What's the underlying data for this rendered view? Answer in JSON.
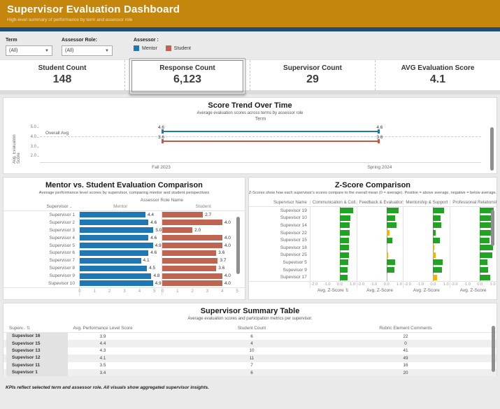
{
  "colors": {
    "header_gold": "#C5860D",
    "navy": "#1F4E79",
    "mentor_blue": "#1F77B4",
    "student_brick": "#BF6450",
    "trend_red": "#C75742",
    "positive_green": "#23A323",
    "negative_amber": "#F2B600"
  },
  "header": {
    "title": "Supervisor Evaluation Dashboard",
    "subtitle": "High-level summary of performance by term and assessor role"
  },
  "filters": {
    "term_label": "Term",
    "term_value": "(All)",
    "role_label": "Assessor Role:",
    "role_value": "(All)",
    "legend_title": "Assessor :",
    "legend": [
      {
        "label": "Mentor",
        "color": "#1F77B4"
      },
      {
        "label": "Student",
        "color": "#BF6450"
      }
    ]
  },
  "kpis": [
    {
      "label": "Student Count",
      "value": "148",
      "selected": false
    },
    {
      "label": "Response Count",
      "value": "6,123",
      "selected": true
    },
    {
      "label": "Supervisor Count",
      "value": "29",
      "selected": false
    },
    {
      "label": "AVG Evaluation Score",
      "value": "4.1",
      "selected": false
    }
  ],
  "trend": {
    "type": "line",
    "title": "Score Trend Over Time",
    "subtitle": "Average evaluation scores across terms by assessor role",
    "col_header": "Term",
    "y_axis_label": "Avg. Evaluation Score",
    "y_ticks": [
      5.0,
      4.0,
      3.0,
      2.0
    ],
    "categories": [
      "Fall 2023",
      "Spring 2024"
    ],
    "series": [
      {
        "name": "Mentor",
        "color": "#1F77B4",
        "values": [
          4.6,
          4.6
        ]
      },
      {
        "name": "Student",
        "color": "#C75742",
        "values": [
          3.6,
          3.6
        ]
      }
    ],
    "overall_avg_label": "Overall Avg",
    "overall_avg": 4.1
  },
  "comparison": {
    "type": "bar",
    "title": "Mentor vs. Student Evaluation Comparison",
    "subtitle": "Average performance level scores by supervisor, comparing mentor and student perspectives",
    "col_group": "Assessor Role Name",
    "row_header": "Supervisor ..",
    "columns": [
      "Mentor",
      "Student"
    ],
    "x_ticks": [
      0,
      1,
      2,
      3,
      4,
      5
    ],
    "x_max": 5.5,
    "rows": [
      {
        "name": "Supervisor 1",
        "mentor": 4.4,
        "student": 2.7
      },
      {
        "name": "Supervisor 2",
        "mentor": 4.6,
        "student": 4.0
      },
      {
        "name": "Supervisor 3",
        "mentor": 5.0,
        "student": 2.0
      },
      {
        "name": "Supervisor 4",
        "mentor": 4.6,
        "student": 4.0
      },
      {
        "name": "Supervisor 5",
        "mentor": 4.9,
        "student": 4.0
      },
      {
        "name": "Supervisor 6",
        "mentor": 4.6,
        "student": 3.6
      },
      {
        "name": "Supervisor 7",
        "mentor": 4.1,
        "student": 3.7
      },
      {
        "name": "Supervisor 8",
        "mentor": 4.5,
        "student": 3.6
      },
      {
        "name": "Supervisor 9",
        "mentor": 4.8,
        "student": 4.0
      },
      {
        "name": "Supevisor 10",
        "mentor": 4.9,
        "student": 4.0
      }
    ]
  },
  "zscore": {
    "type": "bar",
    "title": "Z-Score Comparison",
    "subtitle": "Z-Scores show how each supervisor's scores compare to the overall mean (0 = average). Positive = above average, negative = below average.",
    "columns": [
      "Supervisor Name",
      "Communication & Coll..",
      "Feedback & Evaluation",
      "Mentorship & Support",
      "Professional Relationsh.."
    ],
    "axis_label": "Avg. Z-Score",
    "x_ticks": [
      -2.0,
      -1.0,
      0.0,
      1.0
    ],
    "x_range": [
      -2.3,
      1.3
    ],
    "rows": [
      {
        "name": "Supevisor 19",
        "values": [
          {
            "v": 1.05,
            "amber": false
          },
          {
            "v": 0.95,
            "amber": false
          },
          {
            "v": 0.85,
            "amber": false
          },
          {
            "v": 1.1,
            "amber": false
          }
        ]
      },
      {
        "name": "Supevisor 10",
        "values": [
          {
            "v": 0.85,
            "amber": false
          },
          {
            "v": 0.7,
            "amber": false
          },
          {
            "v": 0.6,
            "amber": false
          },
          {
            "v": 0.85,
            "amber": false
          }
        ]
      },
      {
        "name": "Supevisor 14",
        "values": [
          {
            "v": 0.8,
            "amber": false
          },
          {
            "v": 0.8,
            "amber": false
          },
          {
            "v": 0.65,
            "amber": false
          },
          {
            "v": 1.0,
            "amber": false
          }
        ]
      },
      {
        "name": "Supevisor 22",
        "values": [
          {
            "v": 0.75,
            "amber": false
          },
          {
            "v": 0.25,
            "amber": true
          },
          {
            "v": 0.2,
            "amber": false
          },
          {
            "v": 0.95,
            "amber": false
          }
        ]
      },
      {
        "name": "Supevisor 15",
        "values": [
          {
            "v": 0.7,
            "amber": false
          },
          {
            "v": 0.45,
            "amber": false
          },
          {
            "v": 0.5,
            "amber": false
          },
          {
            "v": 0.75,
            "amber": false
          }
        ]
      },
      {
        "name": "Supevisor 18",
        "values": [
          {
            "v": 0.7,
            "amber": false
          },
          {
            "v": 0.1,
            "amber": true
          },
          {
            "v": 0.08,
            "amber": true
          },
          {
            "v": 1.0,
            "amber": false
          }
        ]
      },
      {
        "name": "Supevisor 25",
        "values": [
          {
            "v": 0.7,
            "amber": false
          },
          {
            "v": 0.15,
            "amber": true
          },
          {
            "v": 0.18,
            "amber": true
          },
          {
            "v": 0.95,
            "amber": false
          }
        ]
      },
      {
        "name": "Supevisor 5",
        "values": [
          {
            "v": 0.65,
            "amber": false
          },
          {
            "v": 0.7,
            "amber": false
          },
          {
            "v": 0.75,
            "amber": false
          },
          {
            "v": 0.6,
            "amber": false
          }
        ]
      },
      {
        "name": "Supevisor 9",
        "values": [
          {
            "v": 0.6,
            "amber": false
          },
          {
            "v": 0.6,
            "amber": false
          },
          {
            "v": 0.7,
            "amber": false
          },
          {
            "v": 0.65,
            "amber": false
          }
        ]
      },
      {
        "name": "Supevisor 17",
        "values": [
          {
            "v": 0.6,
            "amber": false
          },
          {
            "v": 0.1,
            "amber": true
          },
          {
            "v": 0.3,
            "amber": true
          },
          {
            "v": 0.8,
            "amber": false
          }
        ]
      }
    ]
  },
  "summary": {
    "type": "table",
    "title": "Supervisor Summary Table",
    "subtitle": "Average evaluation scores and participation metrics per supervisor.",
    "columns": [
      "Superv..",
      "Avg. Performance Level Score",
      "Student Count",
      "Rubric Element Comments"
    ],
    "rows": [
      {
        "name": "Supevisor 16",
        "score": "3.9",
        "students": "6",
        "comments": "22"
      },
      {
        "name": "Supevisor 15",
        "score": "4.4",
        "students": "4",
        "comments": "0"
      },
      {
        "name": "Supevisor 13",
        "score": "4.3",
        "students": "10",
        "comments": "41"
      },
      {
        "name": "Supevisor 12",
        "score": "4.1",
        "students": "11",
        "comments": "49"
      },
      {
        "name": "Supevisor 11",
        "score": "3.5",
        "students": "7",
        "comments": "16"
      },
      {
        "name": "Supevisor 1",
        "score": "3.4",
        "students": "6",
        "comments": "20"
      }
    ]
  },
  "footer": {
    "note": "KPIs reflect selected term and assessor role. All visuals show aggregated supervisor insights."
  }
}
